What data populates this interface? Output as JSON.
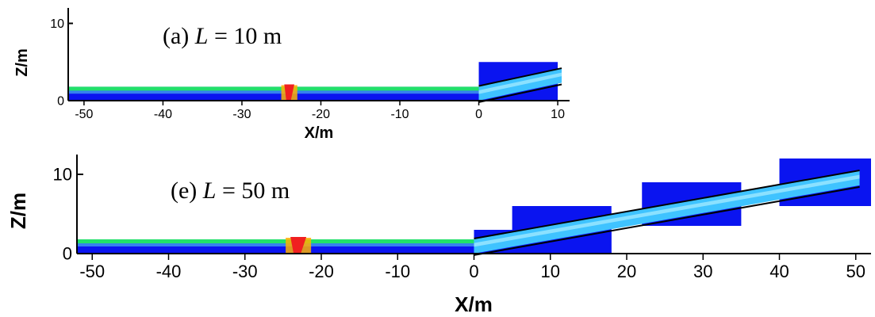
{
  "chart_data": [
    {
      "type": "heatmap",
      "panel_label": "(a)",
      "label_var": "L",
      "label_eq": " = 10 m",
      "xlabel": "X/m",
      "ylabel": "Z/m",
      "xlim": [
        -52,
        11.5
      ],
      "ylim": [
        0,
        12
      ],
      "xticks": [
        -50,
        -40,
        -30,
        -20,
        -10,
        0,
        10
      ],
      "yticks": [
        0,
        10
      ],
      "grid": false,
      "domain_blocks": [
        {
          "x0": 0,
          "x1": 10,
          "z0": 0,
          "z1": 5
        }
      ],
      "water_layer": {
        "x0": -52,
        "x1": 0,
        "z0": 0,
        "z1": 1.8
      },
      "slope": {
        "x0": 0,
        "z0": 1.9,
        "x1": 10.5,
        "z1": 4.2
      },
      "hot_zone_x": -24
    },
    {
      "type": "heatmap",
      "panel_label": "(e)",
      "label_var": "L",
      "label_eq": " = 50 m",
      "xlabel": "X/m",
      "ylabel": "Z/m",
      "xlim": [
        -52,
        52
      ],
      "ylim": [
        0,
        12.5
      ],
      "xticks": [
        -50,
        -40,
        -30,
        -20,
        -10,
        0,
        10,
        20,
        30,
        40,
        50
      ],
      "yticks": [
        0,
        10
      ],
      "grid": false,
      "domain_blocks": [
        {
          "x0": 0,
          "x1": 18,
          "z0": 0,
          "z1": 3
        },
        {
          "x0": 5,
          "x1": 18,
          "z0": 0,
          "z1": 6
        },
        {
          "x0": 22,
          "x1": 35,
          "z0": 3.5,
          "z1": 9
        },
        {
          "x0": 40,
          "x1": 52,
          "z0": 6,
          "z1": 12
        }
      ],
      "water_layer": {
        "x0": -52,
        "x1": 0,
        "z0": 0,
        "z1": 1.8
      },
      "slope": {
        "x0": 0,
        "z0": 1.9,
        "x1": 50.5,
        "z1": 10.5
      },
      "hot_zone_x": -23
    }
  ],
  "colors": {
    "domain": "#0a14f0",
    "layer_mid": "#3a8cf0",
    "layer_top": "#22e06a",
    "band_fill": "#3fc3ff",
    "band_core": "#9fe8ff",
    "hot": "#f02020",
    "hot_edge": "#ffb000",
    "line": "#000000"
  }
}
